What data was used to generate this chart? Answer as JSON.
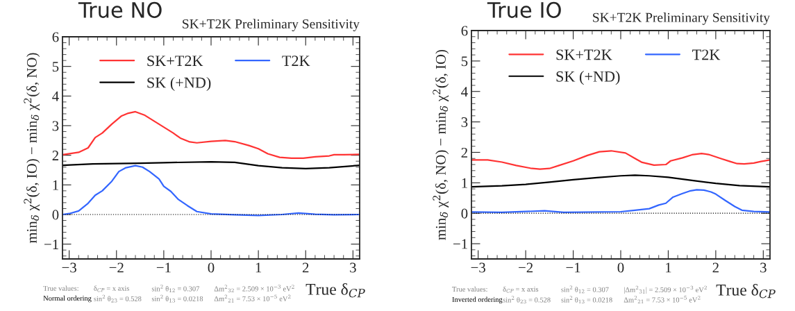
{
  "chart_data": [
    {
      "type": "line",
      "title": "True NO",
      "subtitle": "SK+T2K Preliminary Sensitivity",
      "xlabel": "True δ$_{CP}$",
      "ylabel": "min$_{δ}$ χ$^{2}$(δ, IO) − min$_{δ}$ χ$^{2}$(δ, NO)",
      "xlim": [
        -3.1416,
        3.1416
      ],
      "ylim": [
        -1.5,
        6
      ],
      "xticks": [
        -3,
        -2,
        -1,
        0,
        1,
        2,
        3
      ],
      "yticks": [
        -1,
        0,
        1,
        2,
        3,
        4,
        5,
        6
      ],
      "legend": "top left",
      "ref_lines": [
        {
          "axis": "y",
          "value": 0,
          "color": "#000000",
          "line_style": "dotted"
        }
      ],
      "series": [
        {
          "name": "SK+T2K",
          "color": "#ff3333",
          "x": [
            -3.14,
            -2.8,
            -2.6,
            -2.45,
            -2.3,
            -2.1,
            -1.9,
            -1.75,
            -1.6,
            -1.4,
            -1.2,
            -1.0,
            -0.9,
            -0.8,
            -0.65,
            -0.45,
            -0.3,
            0,
            0.3,
            0.5,
            0.8,
            1.0,
            1.2,
            1.45,
            1.7,
            1.95,
            2.2,
            2.5,
            2.6,
            2.8,
            3.14
          ],
          "values": [
            2.02,
            2.1,
            2.25,
            2.6,
            2.75,
            3.05,
            3.32,
            3.42,
            3.47,
            3.35,
            3.15,
            2.95,
            2.85,
            2.75,
            2.58,
            2.45,
            2.42,
            2.47,
            2.5,
            2.46,
            2.33,
            2.22,
            2.05,
            1.93,
            1.9,
            1.9,
            1.95,
            1.98,
            2.02,
            2.02,
            2.03
          ]
        },
        {
          "name": "SK (+ND)",
          "color": "#000000",
          "x": [
            -3.14,
            -2.5,
            -1.5,
            -1.0,
            0,
            0.5,
            1.0,
            1.5,
            2.0,
            2.5,
            3.14
          ],
          "values": [
            1.66,
            1.71,
            1.73,
            1.75,
            1.78,
            1.76,
            1.65,
            1.58,
            1.55,
            1.58,
            1.66
          ]
        },
        {
          "name": "T2K",
          "color": "#3366ff",
          "x": [
            -3.14,
            -3.0,
            -2.8,
            -2.6,
            -2.45,
            -2.3,
            -2.1,
            -1.95,
            -1.8,
            -1.6,
            -1.45,
            -1.3,
            -1.1,
            -1.0,
            -0.85,
            -0.7,
            -0.5,
            -0.3,
            0,
            0.5,
            1.0,
            1.5,
            1.85,
            2.2,
            2.6,
            3.14
          ],
          "values": [
            0.0,
            0.03,
            0.12,
            0.38,
            0.65,
            0.8,
            1.12,
            1.45,
            1.58,
            1.65,
            1.6,
            1.45,
            1.2,
            0.95,
            0.78,
            0.52,
            0.3,
            0.1,
            0.02,
            -0.01,
            -0.03,
            0.0,
            0.05,
            0.01,
            -0.01,
            0.0
          ]
        }
      ],
      "annotations": [
        "True values:",
        "Normal ordering",
        "δ$_{CP}$ = x axis",
        "sin$^{2}$ θ$_{23}$ = 0.528",
        "sin$^{2}$ θ$_{12}$ = 0.307",
        "sin$^{2}$ θ$_{13}$ = 0.0218",
        "Δm$^{2}$$_{32}$ = 2.509 × 10$^{−3}$ eV$^{2}$",
        "Δm$^{2}$$_{21}$ = 7.53 × 10$^{−5}$ eV$^{2}$"
      ]
    },
    {
      "type": "line",
      "title": "True IO",
      "subtitle": "SK+T2K Preliminary Sensitivity",
      "xlabel": "True δ$_{CP}$",
      "ylabel": "min$_{δ}$ χ$^{2}$(δ, NO) − min$_{δ}$ χ$^{2}$(δ, IO)",
      "xlim": [
        -3.1416,
        3.1416
      ],
      "ylim": [
        -1.5,
        6
      ],
      "xticks": [
        -3,
        -2,
        -1,
        0,
        1,
        2,
        3
      ],
      "yticks": [
        -1,
        0,
        1,
        2,
        3,
        4,
        5,
        6
      ],
      "legend": "top left",
      "ref_lines": [
        {
          "axis": "y",
          "value": 0,
          "color": "#000000",
          "line_style": "dotted"
        }
      ],
      "series": [
        {
          "name": "SK+T2K",
          "color": "#ff3333",
          "x": [
            -3.14,
            -2.8,
            -2.5,
            -2.2,
            -1.9,
            -1.7,
            -1.5,
            -1.3,
            -1.0,
            -0.7,
            -0.45,
            -0.2,
            0.1,
            0.3,
            0.45,
            0.7,
            0.95,
            1.05,
            1.3,
            1.5,
            1.7,
            1.85,
            2.1,
            2.3,
            2.45,
            2.6,
            2.8,
            2.95,
            3.14
          ],
          "values": [
            1.75,
            1.75,
            1.68,
            1.57,
            1.48,
            1.45,
            1.47,
            1.57,
            1.72,
            1.9,
            2.02,
            2.05,
            1.98,
            1.8,
            1.67,
            1.58,
            1.6,
            1.72,
            1.82,
            1.92,
            1.96,
            1.93,
            1.8,
            1.7,
            1.63,
            1.62,
            1.65,
            1.7,
            1.75
          ]
        },
        {
          "name": "SK (+ND)",
          "color": "#000000",
          "x": [
            -3.14,
            -2.5,
            -2.0,
            -1.5,
            -1.0,
            -0.5,
            0,
            0.3,
            0.6,
            1.0,
            1.5,
            2.0,
            2.5,
            3.14
          ],
          "values": [
            0.87,
            0.9,
            0.95,
            1.02,
            1.1,
            1.17,
            1.23,
            1.25,
            1.23,
            1.18,
            1.08,
            0.98,
            0.91,
            0.87
          ]
        },
        {
          "name": "T2K",
          "color": "#3366ff",
          "x": [
            -3.14,
            -2.5,
            -1.6,
            -1.2,
            0,
            0.3,
            0.6,
            0.8,
            0.95,
            1.1,
            1.3,
            1.45,
            1.6,
            1.75,
            1.9,
            2.0,
            2.2,
            2.4,
            2.55,
            2.8,
            3.14
          ],
          "values": [
            0.04,
            0.03,
            0.08,
            0.03,
            0.05,
            0.1,
            0.15,
            0.27,
            0.33,
            0.53,
            0.65,
            0.73,
            0.77,
            0.76,
            0.7,
            0.63,
            0.42,
            0.22,
            0.1,
            0.06,
            0.04
          ]
        }
      ],
      "annotations": [
        "True values:",
        "Inverted ordering",
        "δ$_{CP}$ = x axis",
        "sin$^{2}$ θ$_{23}$ = 0.528",
        "sin$^{2}$ θ$_{12}$ = 0.307",
        "sin$^{2}$ θ$_{13}$ = 0.0218",
        "|Δm$^{2}$$_{31}$| = 2.509 × 10$^{−3}$ eV$^{2}$",
        "Δm$^{2}$$_{21}$ = 7.53 × 10$^{−5}$ eV$^{2}$"
      ]
    }
  ]
}
